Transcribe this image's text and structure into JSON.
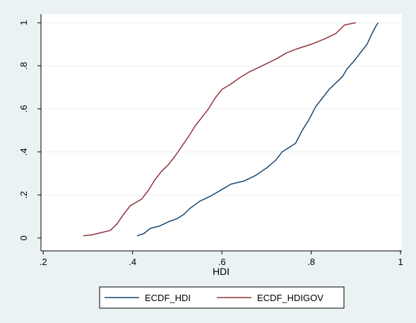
{
  "chart_data": {
    "type": "line",
    "title": "",
    "xlabel": "HDI",
    "ylabel": "",
    "xlim": [
      0.2,
      1.0
    ],
    "ylim": [
      0,
      1
    ],
    "x_ticks": [
      0.2,
      0.4,
      0.6,
      0.8,
      1.0
    ],
    "x_tick_labels": [
      ".2",
      ".4",
      ".6",
      ".8",
      "1"
    ],
    "y_ticks": [
      0,
      0.2,
      0.4,
      0.6,
      0.8,
      1.0
    ],
    "y_tick_labels": [
      "0",
      ".2",
      ".4",
      ".6",
      ".8",
      "1"
    ],
    "grid": "horizontal",
    "legend_position": "bottom",
    "background_color": "#eaf2f3",
    "plot_background": "#ffffff",
    "series": [
      {
        "name": "ECDF_HDI",
        "color": "#1a476f",
        "points": [
          [
            0.41,
            0.01
          ],
          [
            0.425,
            0.02
          ],
          [
            0.44,
            0.045
          ],
          [
            0.46,
            0.055
          ],
          [
            0.48,
            0.075
          ],
          [
            0.5,
            0.09
          ],
          [
            0.515,
            0.11
          ],
          [
            0.53,
            0.14
          ],
          [
            0.55,
            0.17
          ],
          [
            0.575,
            0.195
          ],
          [
            0.6,
            0.225
          ],
          [
            0.62,
            0.25
          ],
          [
            0.65,
            0.265
          ],
          [
            0.675,
            0.29
          ],
          [
            0.7,
            0.325
          ],
          [
            0.72,
            0.36
          ],
          [
            0.735,
            0.4
          ],
          [
            0.75,
            0.42
          ],
          [
            0.765,
            0.44
          ],
          [
            0.78,
            0.5
          ],
          [
            0.795,
            0.55
          ],
          [
            0.81,
            0.61
          ],
          [
            0.825,
            0.65
          ],
          [
            0.84,
            0.69
          ],
          [
            0.855,
            0.72
          ],
          [
            0.87,
            0.75
          ],
          [
            0.88,
            0.785
          ],
          [
            0.895,
            0.82
          ],
          [
            0.91,
            0.86
          ],
          [
            0.925,
            0.9
          ],
          [
            0.935,
            0.945
          ],
          [
            0.945,
            0.985
          ],
          [
            0.95,
            1.0
          ]
        ]
      },
      {
        "name": "ECDF_HDIGOV",
        "color": "#90353b",
        "points": [
          [
            0.29,
            0.01
          ],
          [
            0.31,
            0.015
          ],
          [
            0.33,
            0.025
          ],
          [
            0.35,
            0.035
          ],
          [
            0.365,
            0.065
          ],
          [
            0.38,
            0.11
          ],
          [
            0.395,
            0.15
          ],
          [
            0.42,
            0.18
          ],
          [
            0.435,
            0.22
          ],
          [
            0.45,
            0.27
          ],
          [
            0.465,
            0.31
          ],
          [
            0.48,
            0.34
          ],
          [
            0.495,
            0.38
          ],
          [
            0.51,
            0.425
          ],
          [
            0.525,
            0.47
          ],
          [
            0.54,
            0.52
          ],
          [
            0.555,
            0.56
          ],
          [
            0.57,
            0.6
          ],
          [
            0.585,
            0.65
          ],
          [
            0.6,
            0.69
          ],
          [
            0.62,
            0.715
          ],
          [
            0.64,
            0.745
          ],
          [
            0.66,
            0.77
          ],
          [
            0.68,
            0.79
          ],
          [
            0.7,
            0.81
          ],
          [
            0.72,
            0.83
          ],
          [
            0.745,
            0.86
          ],
          [
            0.77,
            0.88
          ],
          [
            0.8,
            0.9
          ],
          [
            0.83,
            0.925
          ],
          [
            0.855,
            0.95
          ],
          [
            0.875,
            0.99
          ],
          [
            0.9,
            1.0
          ]
        ]
      }
    ]
  }
}
